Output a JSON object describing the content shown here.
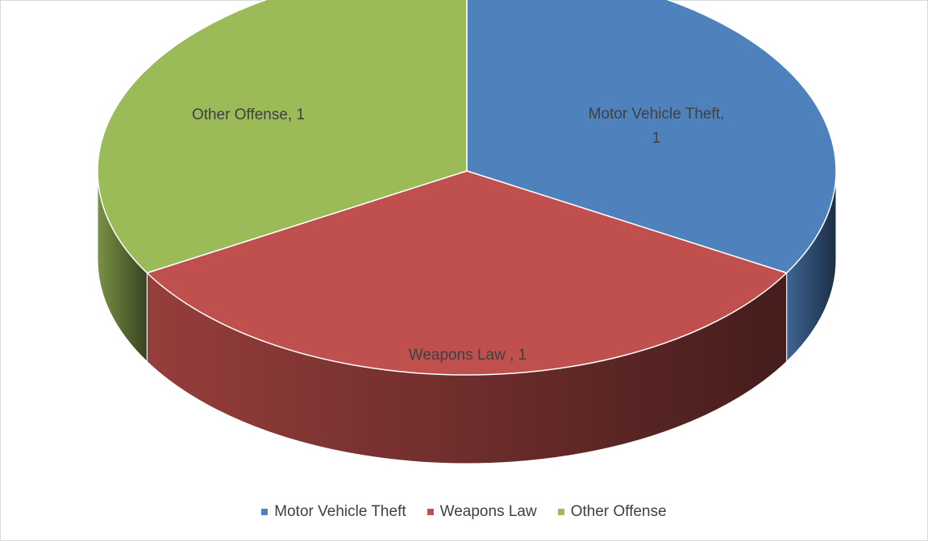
{
  "chart_data": {
    "type": "pie",
    "style": "3d",
    "categories": [
      "Motor Vehicle Theft",
      "Weapons Law",
      "Other Offense"
    ],
    "values": [
      1,
      1,
      1
    ],
    "colors": [
      "#4f81bd",
      "#c0504d",
      "#9bbb59"
    ],
    "data_labels": [
      "Motor Vehicle Theft, 1",
      "Weapons Law , 1",
      "Other Offense, 1"
    ],
    "title": "",
    "legend_position": "bottom"
  }
}
